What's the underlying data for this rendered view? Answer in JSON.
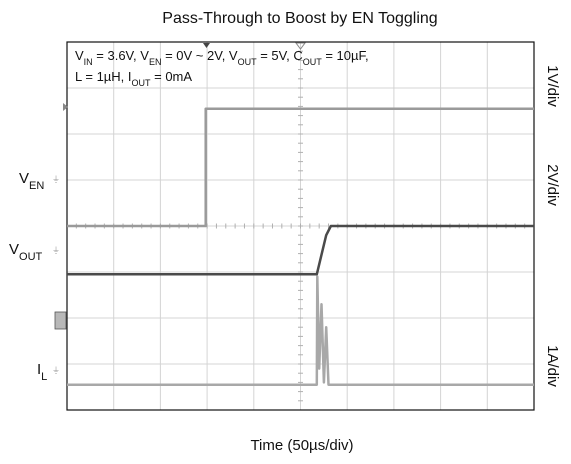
{
  "chart_data": {
    "type": "line",
    "title": "Pass-Through to Boost by EN Toggling",
    "conditions": {
      "line1_parts": [
        {
          "t": "V"
        },
        {
          "t": "IN",
          "sub": true
        },
        {
          "t": " = 3.6V, V"
        },
        {
          "t": "EN",
          "sub": true
        },
        {
          "t": " = 0V ~ 2V, V"
        },
        {
          "t": "OUT",
          "sub": true
        },
        {
          "t": " = 5V, C"
        },
        {
          "t": "OUT",
          "sub": true
        },
        {
          "t": " = 10µF,"
        }
      ],
      "line2_parts": [
        {
          "t": "L = 1µH, I"
        },
        {
          "t": "OUT",
          "sub": true
        },
        {
          "t": " = 0mA"
        }
      ]
    },
    "xlabel": "Time (50µs/div)",
    "divisions": {
      "x": 10,
      "y": 8
    },
    "channels": [
      {
        "id": "en",
        "label_main": "V",
        "label_sub": "EN",
        "scale": "1V/div",
        "color": "#9a9a9a",
        "width": 2.5,
        "points": [
          [
            0,
            4.0
          ],
          [
            2.97,
            4.0
          ],
          [
            2.97,
            6.55
          ],
          [
            10,
            6.55
          ]
        ]
      },
      {
        "id": "vout",
        "label_main": "V",
        "label_sub": "OUT",
        "scale": "2V/div",
        "color": "#4a4a4a",
        "width": 2.5,
        "points": [
          [
            0,
            2.95
          ],
          [
            5.35,
            2.95
          ],
          [
            5.55,
            3.8
          ],
          [
            5.65,
            4.0
          ],
          [
            10,
            4.0
          ]
        ]
      },
      {
        "id": "il",
        "label_main": "I",
        "label_sub": "L",
        "scale": "1A/div",
        "color": "#a8a8a8",
        "width": 2.5,
        "points": [
          [
            0,
            0.55
          ],
          [
            5.35,
            0.55
          ],
          [
            5.36,
            2.9
          ],
          [
            5.4,
            0.9
          ],
          [
            5.45,
            2.3
          ],
          [
            5.5,
            0.6
          ],
          [
            5.55,
            1.8
          ],
          [
            5.6,
            0.55
          ],
          [
            10,
            0.55
          ]
        ]
      }
    ]
  }
}
